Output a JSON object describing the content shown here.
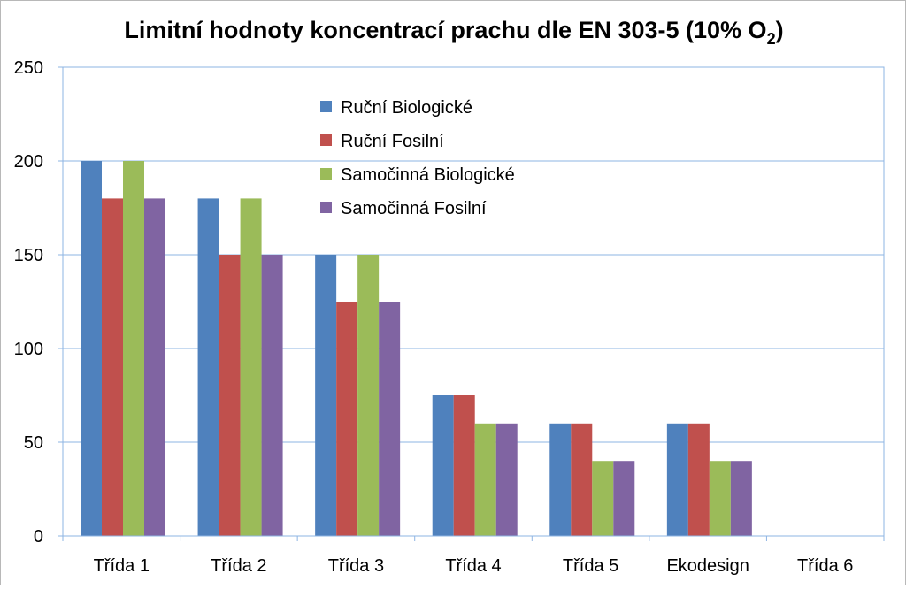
{
  "chart_data": {
    "type": "bar",
    "title": "Limitní hodnoty koncentrací prachu dle EN 303-5 (10% O",
    "title_subscript": "2",
    "title_suffix": ")",
    "xlabel": "",
    "ylabel": "",
    "categories": [
      "Třída 1",
      "Třída 2",
      "Třída 3",
      "Třída 4",
      "Třída 5",
      "Ekodesign",
      "Třída 6"
    ],
    "ylim": [
      0,
      250
    ],
    "yticks": [
      0,
      50,
      100,
      150,
      200,
      250
    ],
    "grid": true,
    "legend_position": "top-center",
    "series": [
      {
        "name": "Ruční Biologické",
        "color": "#4f81bd",
        "values": [
          200,
          180,
          150,
          75,
          60,
          60,
          null
        ]
      },
      {
        "name": "Ruční Fosilní",
        "color": "#c0504d",
        "values": [
          180,
          150,
          125,
          75,
          60,
          60,
          null
        ]
      },
      {
        "name": "Samočinná Biologické",
        "color": "#9bbb59",
        "values": [
          200,
          180,
          150,
          60,
          40,
          40,
          null
        ]
      },
      {
        "name": "Samočinná Fosilní",
        "color": "#8064a2",
        "values": [
          180,
          150,
          125,
          60,
          40,
          40,
          null
        ]
      }
    ]
  }
}
